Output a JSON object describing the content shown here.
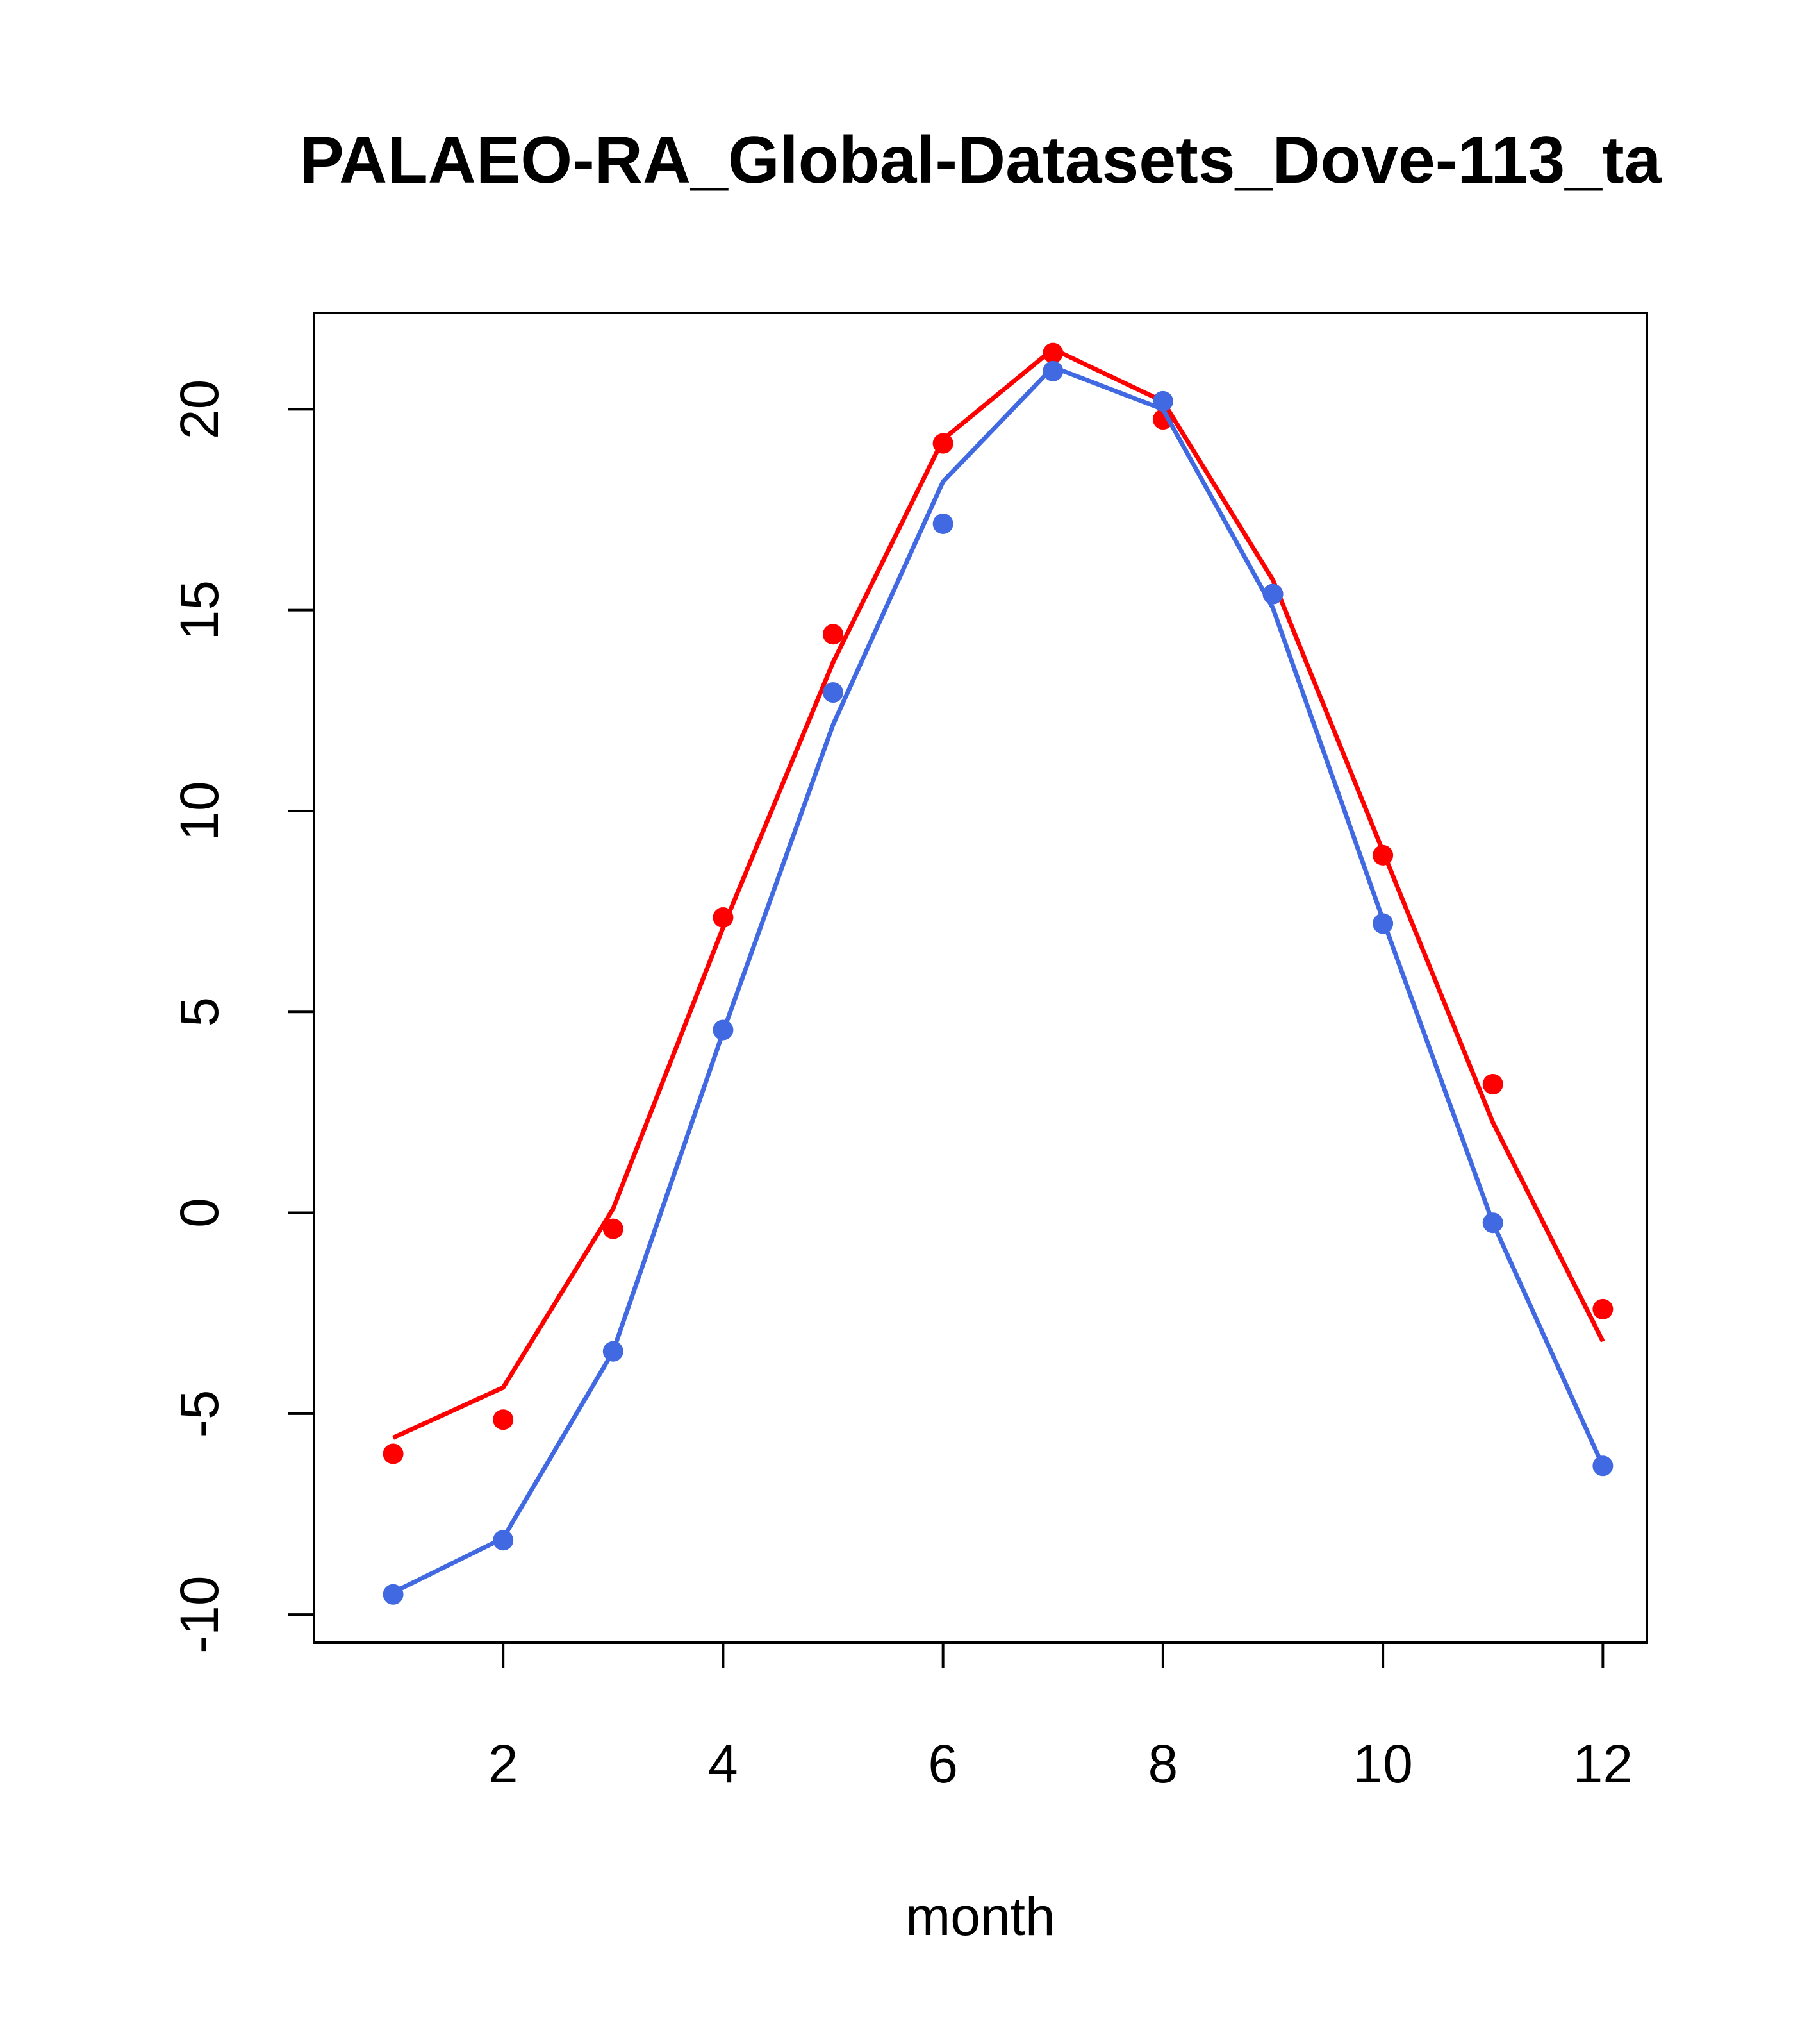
{
  "chart_data": {
    "type": "line",
    "title": "PALAEO-RA_Global-Datasets_Dove-113_ta",
    "xlabel": "month",
    "ylabel": "",
    "x": [
      1,
      2,
      3,
      4,
      5,
      6,
      7,
      8,
      9,
      10,
      11,
      12
    ],
    "xticks": [
      2,
      4,
      6,
      8,
      10,
      12
    ],
    "yticks": [
      -10,
      -5,
      0,
      5,
      10,
      15,
      20
    ],
    "xlim": [
      0.28,
      12.4
    ],
    "ylim": [
      -10.7,
      22.4
    ],
    "grid": false,
    "series": [
      {
        "name": "red_points",
        "kind": "points",
        "color": "#ff0000",
        "values": [
          -6.0,
          -5.15,
          -0.4,
          7.35,
          14.4,
          19.15,
          21.4,
          19.75,
          15.4,
          8.9,
          3.2,
          -2.4
        ]
      },
      {
        "name": "red_line",
        "kind": "line",
        "color": "#ff0000",
        "values": [
          -5.6,
          -4.35,
          0.1,
          7.1,
          13.7,
          19.25,
          21.5,
          20.2,
          15.75,
          9.0,
          2.25,
          -3.2
        ]
      },
      {
        "name": "blue_points",
        "kind": "points",
        "color": "#4169e1",
        "values": [
          -9.5,
          -8.15,
          -3.45,
          4.55,
          12.95,
          17.15,
          20.95,
          20.2,
          15.4,
          7.2,
          -0.25,
          -6.3
        ]
      },
      {
        "name": "blue_line",
        "kind": "line",
        "color": "#4169e1",
        "values": [
          -9.45,
          -8.1,
          -3.45,
          4.5,
          12.15,
          18.2,
          21.05,
          20.0,
          15.05,
          7.3,
          -0.25,
          -6.3
        ]
      }
    ]
  }
}
